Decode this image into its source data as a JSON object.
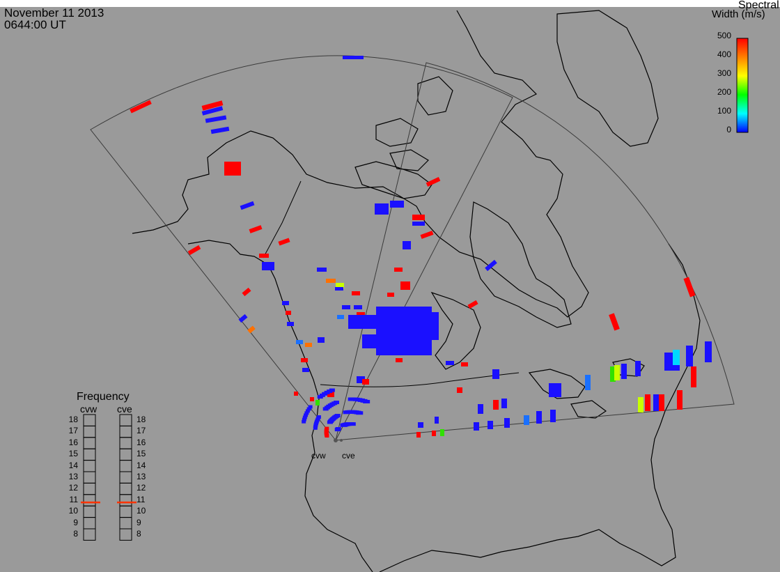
{
  "header": {
    "date": "November 11 2013",
    "time": "0644:00 UT"
  },
  "colorbar": {
    "title_line1": "Spectral",
    "title_line2": "Width (m/s)",
    "ticks": [
      "500",
      "400",
      "300",
      "200",
      "100",
      "0"
    ],
    "colors": [
      "#ff0000",
      "#ff8000",
      "#ffff00",
      "#00ff00",
      "#00ffff",
      "#0000ff"
    ]
  },
  "frequency": {
    "title": "Frequency",
    "radar_left": "cvw",
    "radar_right": "cve",
    "ticks": [
      "18",
      "17",
      "16",
      "15",
      "14",
      "13",
      "12",
      "11",
      "10",
      "9",
      "8"
    ],
    "cvw_value": 10.8,
    "cve_value": 10.8,
    "marker_color": "#ff3300"
  },
  "radars": {
    "cvw_label": "cvw",
    "cve_label": "cve"
  },
  "colors": {
    "background": "#9a9a9a",
    "coastline": "#000000",
    "fov_outline": "#3a3a3a"
  }
}
